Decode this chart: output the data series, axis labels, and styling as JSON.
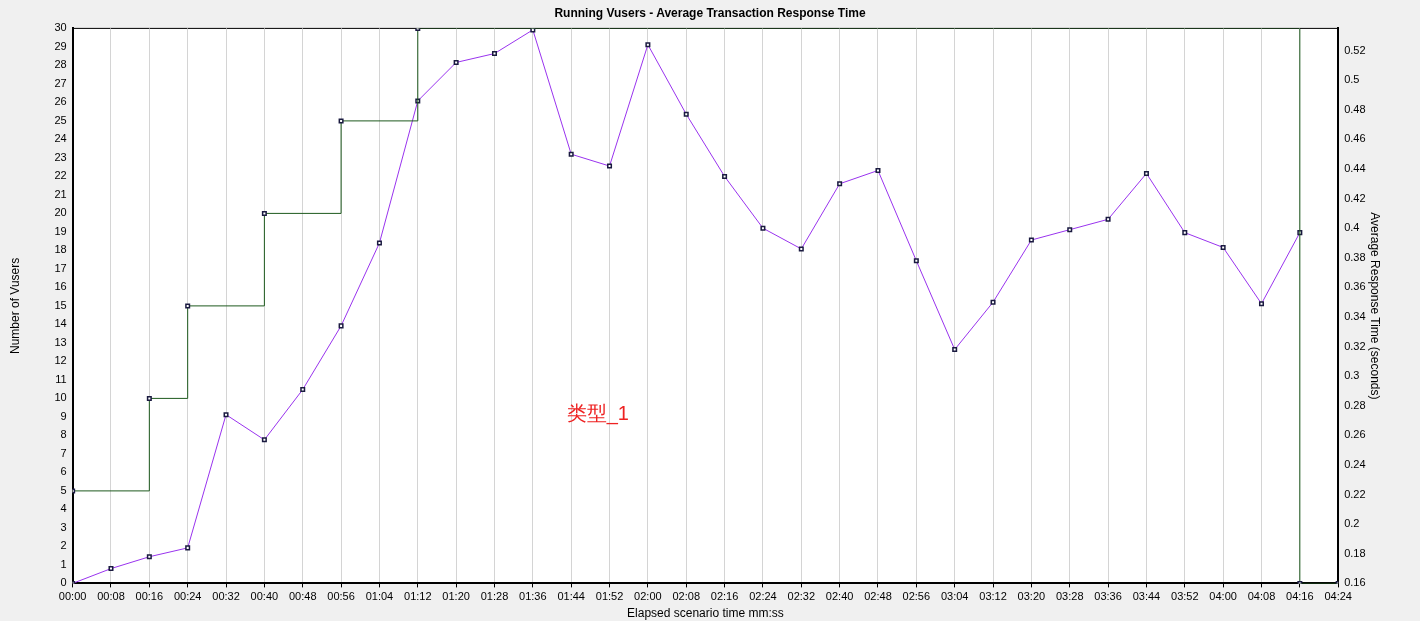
{
  "chart_data": {
    "type": "line",
    "title": "Running Vusers - Average Transaction Response Time",
    "xlabel": "Elapsed scenario time mm:ss",
    "ylabel": "Number of Vusers",
    "y2label": "Average Response Time (seconds)",
    "annotations": [
      "类型_1"
    ],
    "series": [
      {
        "type": "step",
        "color": "#1e5a1e",
        "x": [
          0,
          16,
          24,
          40,
          56,
          72,
          256,
          264
        ],
        "values": [
          5,
          10,
          15,
          20,
          25,
          30,
          0,
          0
        ]
      },
      {
        "color": "#9933ee",
        "axis": "y2",
        "x": [
          0,
          8,
          16,
          24,
          32,
          40,
          48,
          56,
          64,
          72,
          80,
          88,
          96,
          104,
          112,
          120,
          128,
          136,
          144,
          152,
          160,
          168,
          176,
          184,
          192,
          200,
          208,
          216,
          224,
          232,
          240,
          248,
          256
        ],
        "values": [
          0.16,
          0.17,
          0.178,
          0.184,
          0.274,
          0.257,
          0.291,
          0.334,
          0.39,
          0.486,
          0.512,
          0.518,
          0.534,
          0.45,
          0.442,
          0.524,
          0.477,
          0.435,
          0.4,
          0.386,
          0.43,
          0.439,
          0.378,
          0.318,
          0.35,
          0.392,
          0.399,
          0.406,
          0.437,
          0.397,
          0.387,
          0.349,
          0.397
        ]
      }
    ],
    "xlim": [
      0,
      264
    ],
    "xticks": [
      {
        "value": 0,
        "label": "00:00"
      },
      {
        "value": 8,
        "label": "00:08"
      },
      {
        "value": 16,
        "label": "00:16"
      },
      {
        "value": 24,
        "label": "00:24"
      },
      {
        "value": 32,
        "label": "00:32"
      },
      {
        "value": 40,
        "label": "00:40"
      },
      {
        "value": 48,
        "label": "00:48"
      },
      {
        "value": 56,
        "label": "00:56"
      },
      {
        "value": 64,
        "label": "01:04"
      },
      {
        "value": 72,
        "label": "01:12"
      },
      {
        "value": 80,
        "label": "01:20"
      },
      {
        "value": 88,
        "label": "01:28"
      },
      {
        "value": 96,
        "label": "01:36"
      },
      {
        "value": 104,
        "label": "01:44"
      },
      {
        "value": 112,
        "label": "01:52"
      },
      {
        "value": 120,
        "label": "02:00"
      },
      {
        "value": 128,
        "label": "02:08"
      },
      {
        "value": 136,
        "label": "02:16"
      },
      {
        "value": 144,
        "label": "02:24"
      },
      {
        "value": 152,
        "label": "02:32"
      },
      {
        "value": 160,
        "label": "02:40"
      },
      {
        "value": 168,
        "label": "02:48"
      },
      {
        "value": 176,
        "label": "02:56"
      },
      {
        "value": 184,
        "label": "03:04"
      },
      {
        "value": 192,
        "label": "03:12"
      },
      {
        "value": 200,
        "label": "03:20"
      },
      {
        "value": 208,
        "label": "03:28"
      },
      {
        "value": 216,
        "label": "03:36"
      },
      {
        "value": 224,
        "label": "03:44"
      },
      {
        "value": 232,
        "label": "03:52"
      },
      {
        "value": 240,
        "label": "04:00"
      },
      {
        "value": 248,
        "label": "04:08"
      },
      {
        "value": 256,
        "label": "04:16"
      },
      {
        "value": 264,
        "label": "04:24"
      }
    ],
    "ylim": [
      0,
      30
    ],
    "yticks": [
      0,
      1,
      2,
      3,
      4,
      5,
      6,
      7,
      8,
      9,
      10,
      11,
      12,
      13,
      14,
      15,
      16,
      17,
      18,
      19,
      20,
      21,
      22,
      23,
      24,
      25,
      26,
      27,
      28,
      29,
      30
    ],
    "y2lim": [
      0.16,
      0.535
    ],
    "y2ticks": [
      0.16,
      0.18,
      0.2,
      0.22,
      0.24,
      0.26,
      0.28,
      0.3,
      0.32,
      0.34,
      0.36,
      0.38,
      0.4,
      0.42,
      0.44,
      0.46,
      0.48,
      0.5,
      0.52
    ],
    "grid": "x",
    "legend": false,
    "marker": "square",
    "line_style": "solid"
  }
}
